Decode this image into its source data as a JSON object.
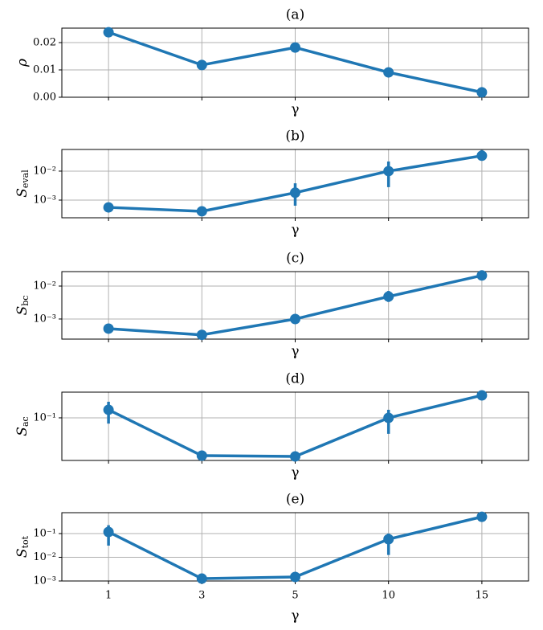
{
  "chart_data": [
    {
      "type": "line",
      "title": "(a)",
      "xlabel": "γ",
      "ylabel": "ρ",
      "color": "#1f77b4",
      "grid": true,
      "log": false,
      "values": [
        0.0238,
        0.0118,
        0.0182,
        0.0091,
        0.0018
      ],
      "ylim": [
        0,
        0.0253
      ],
      "yticks": [
        {
          "value": 0,
          "label": "0.00"
        },
        {
          "value": 0.01,
          "label": "0.01"
        },
        {
          "value": 0.02,
          "label": "0.02"
        }
      ]
    },
    {
      "type": "line",
      "title": "(b)",
      "xlabel": "γ",
      "ylabel": "S",
      "ylabel_subscript": "eval",
      "color": "#1f77b4",
      "grid": true,
      "log": true,
      "values": [
        0.00056,
        0.00041,
        0.0018,
        0.01,
        0.034
      ],
      "upper": [
        null,
        null,
        0.0038,
        0.0215,
        0.053
      ],
      "lower": [
        null,
        null,
        0.00064,
        0.0028,
        0.023
      ],
      "ylim": [
        0.000245,
        0.056
      ],
      "yticks": [
        {
          "value": 0.001,
          "label": "10⁻³"
        },
        {
          "value": 0.01,
          "label": "10⁻²"
        }
      ]
    },
    {
      "type": "line",
      "title": "(c)",
      "xlabel": "γ",
      "ylabel": "S",
      "ylabel_subscript": "bc",
      "color": "#1f77b4",
      "grid": true,
      "log": true,
      "values": [
        0.00051,
        0.00033,
        0.001,
        0.0048,
        0.021
      ],
      "upper": [
        null,
        null,
        null,
        0.0071,
        null
      ],
      "lower": [
        null,
        null,
        null,
        0.0033,
        null
      ],
      "ylim": [
        0.000245,
        0.0275
      ],
      "yticks": [
        {
          "value": 0.001,
          "label": "10⁻³"
        },
        {
          "value": 0.01,
          "label": "10⁻²"
        }
      ]
    },
    {
      "type": "line",
      "title": "(d)",
      "xlabel": "γ",
      "ylabel": "S",
      "ylabel_subscript": "ac",
      "color": "#1f77b4",
      "grid": true,
      "log": true,
      "values": [
        0.139,
        0.0213,
        0.0206,
        0.1,
        0.251
      ],
      "upper": [
        0.193,
        null,
        null,
        0.139,
        null
      ],
      "lower": [
        0.079,
        null,
        null,
        0.052,
        null
      ],
      "ylim": [
        0.0175,
        0.286
      ],
      "yticks": [
        {
          "value": 0.1,
          "label": "10⁻¹"
        }
      ]
    },
    {
      "type": "line",
      "title": "(e)",
      "xlabel": "γ",
      "ylabel": "S",
      "ylabel_subscript": "tot",
      "color": "#1f77b4",
      "grid": true,
      "log": true,
      "categories": [
        "1",
        "3",
        "5",
        "10",
        "15"
      ],
      "values": [
        0.117,
        0.00126,
        0.00148,
        0.058,
        0.51
      ],
      "upper": [
        0.225,
        null,
        null,
        0.1,
        null
      ],
      "lower": [
        0.031,
        null,
        null,
        0.0125,
        null
      ],
      "ylim": [
        0.001,
        0.76
      ],
      "yticks": [
        {
          "value": 0.001,
          "label": "10⁻³"
        },
        {
          "value": 0.01,
          "label": "10⁻²"
        },
        {
          "value": 0.1,
          "label": "10⁻¹"
        }
      ]
    }
  ]
}
